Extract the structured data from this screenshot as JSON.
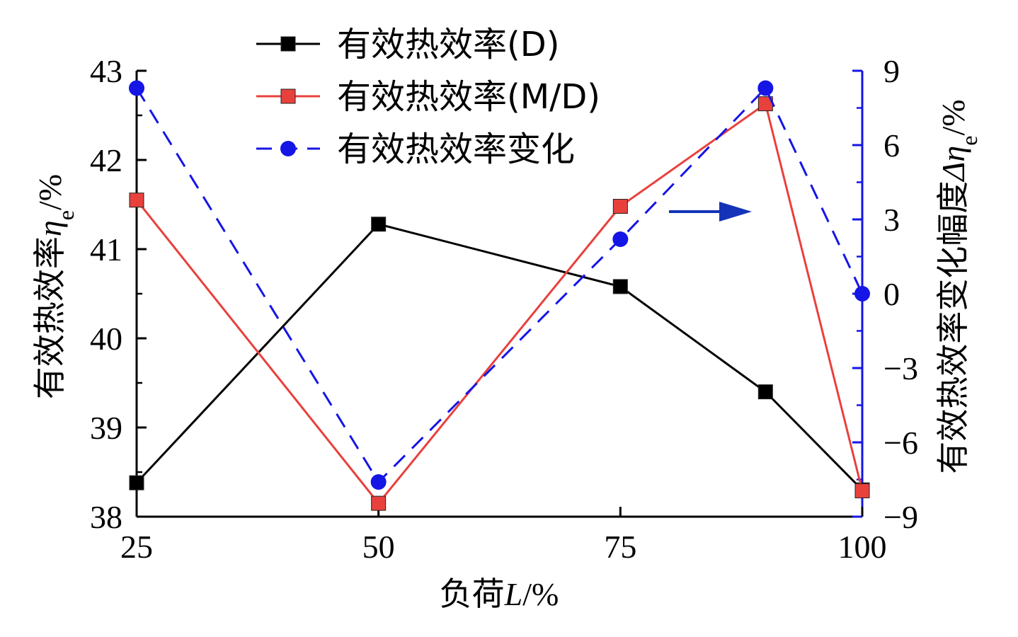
{
  "chart_data": {
    "type": "line",
    "x": [
      25,
      50,
      75,
      90,
      100
    ],
    "xlim": [
      25,
      100
    ],
    "x_ticks": [
      25,
      50,
      75,
      100
    ],
    "x_tick_labels": [
      "25",
      "50",
      "75",
      "100"
    ],
    "xlabel": {
      "main": "负荷",
      "var": "L",
      "unit": "/%"
    },
    "ylim_left": [
      38,
      43
    ],
    "y_left_ticks": [
      38,
      39,
      40,
      41,
      42,
      43
    ],
    "y_left_tick_labels": [
      "38",
      "39",
      "40",
      "41",
      "42",
      "43"
    ],
    "ylabel_left": {
      "main": "有效热效率",
      "var": "η",
      "sub": "e",
      "unit": "/%"
    },
    "ylim_right": [
      -9,
      9
    ],
    "y_right_ticks": [
      -9,
      -6,
      -3,
      0,
      3,
      6,
      9
    ],
    "y_right_tick_labels": [
      "−9",
      "−6",
      "−3",
      "0",
      "3",
      "6",
      "9"
    ],
    "ylabel_right": {
      "main": "有效热效率变化幅度",
      "var": "Δη",
      "sub": "e",
      "unit": "/%"
    },
    "series": [
      {
        "name": "有效热效率(D)",
        "axis": "left",
        "color": "#000000",
        "marker": "square",
        "dash": "solid",
        "values": [
          38.38,
          41.28,
          40.58,
          39.4,
          38.3
        ]
      },
      {
        "name": "有效热效率(M/D)",
        "axis": "left",
        "color": "#e8413c",
        "marker": "square",
        "dash": "solid",
        "values": [
          41.55,
          38.15,
          41.48,
          42.63,
          38.29
        ]
      },
      {
        "name": "有效热效率变化",
        "axis": "right",
        "color": "#1515e6",
        "marker": "circle",
        "dash": "dashed",
        "values": [
          8.3,
          -7.6,
          2.2,
          8.3,
          0.0
        ]
      }
    ],
    "legend_position": "top-center",
    "grid": false,
    "annotation": {
      "type": "arrow",
      "direction": "right",
      "meaning": "points to right axis",
      "color": "#1533b8"
    },
    "right_axis_color": "#1515e6"
  }
}
